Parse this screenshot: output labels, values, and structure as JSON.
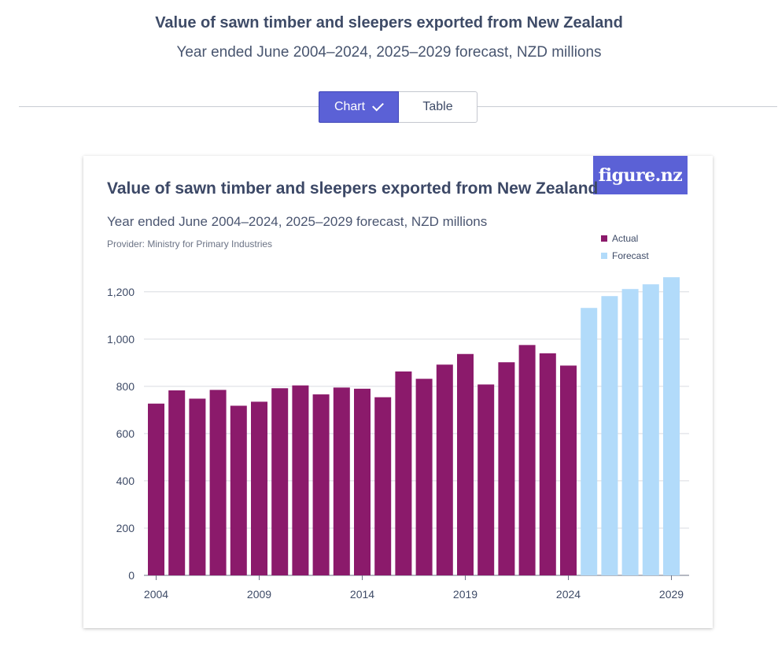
{
  "header": {
    "title": "Value of sawn timber and sleepers exported from New Zealand",
    "subtitle": "Year ended June 2004–2024, 2025–2029 forecast, NZD millions"
  },
  "view_toggle": {
    "chart_label": "Chart",
    "table_label": "Table",
    "selected": "chart"
  },
  "card": {
    "title": "Value of sawn timber and sleepers exported from New Zealand",
    "subtitle": "Year ended June 2004–2024, 2025–2029 forecast, NZD millions",
    "provider": "Provider: Ministry for Primary Industries",
    "logo": "figure.nz"
  },
  "legend": {
    "actual": "Actual",
    "forecast": "Forecast"
  },
  "colors": {
    "actual": "#8b1a6b",
    "forecast": "#b2dbfa",
    "brand": "#5b61d6"
  },
  "chart_data": {
    "type": "bar",
    "title": "Value of sawn timber and sleepers exported from New Zealand",
    "ylabel": "NZD millions",
    "xlabel": "",
    "ylim": [
      0,
      1300
    ],
    "yticks": [
      0,
      200,
      400,
      600,
      800,
      1000,
      1200
    ],
    "xtick_labels": [
      "2004",
      "2009",
      "2014",
      "2019",
      "2024",
      "2029"
    ],
    "categories": [
      "2004",
      "2005",
      "2006",
      "2007",
      "2008",
      "2009",
      "2010",
      "2011",
      "2012",
      "2013",
      "2014",
      "2015",
      "2016",
      "2017",
      "2018",
      "2019",
      "2020",
      "2021",
      "2022",
      "2023",
      "2024",
      "2025",
      "2026",
      "2027",
      "2028",
      "2029"
    ],
    "series": [
      {
        "name": "Actual",
        "values": [
          727,
          783,
          748,
          785,
          718,
          735,
          792,
          804,
          766,
          795,
          790,
          754,
          863,
          832,
          892,
          937,
          808,
          902,
          975,
          940,
          888,
          null,
          null,
          null,
          null,
          null
        ]
      },
      {
        "name": "Forecast",
        "values": [
          null,
          null,
          null,
          null,
          null,
          null,
          null,
          null,
          null,
          null,
          null,
          null,
          null,
          null,
          null,
          null,
          null,
          null,
          null,
          null,
          null,
          1132,
          1182,
          1212,
          1232,
          1262
        ]
      }
    ]
  }
}
